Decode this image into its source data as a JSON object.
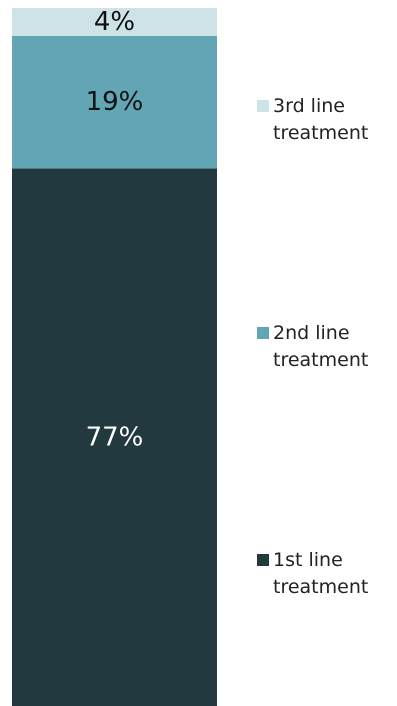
{
  "chart_data": {
    "type": "bar",
    "stacked": true,
    "orientation": "vertical",
    "categories": [
      ""
    ],
    "series": [
      {
        "name": "1st line treatment",
        "values": [
          77
        ],
        "label": "77%",
        "color": "#21393f",
        "label_color": "#ffffff"
      },
      {
        "name": "2nd line treatment",
        "values": [
          19
        ],
        "label": "19%",
        "color": "#62a6b6",
        "label_color": "#111111"
      },
      {
        "name": "3rd line treatment",
        "values": [
          4
        ],
        "label": "4%",
        "color": "#cde3e8",
        "label_color": "#111111"
      }
    ],
    "ylim": [
      0,
      100
    ],
    "legend": {
      "position": "right",
      "entries": [
        {
          "line1": "3rd line",
          "line2": "treatment",
          "color": "#cde3e8"
        },
        {
          "line1": "2nd line",
          "line2": "treatment",
          "color": "#62a6b6"
        },
        {
          "line1": "1st line",
          "line2": "treatment",
          "color": "#21393f"
        }
      ]
    },
    "grid": false,
    "title": "",
    "xlabel": "",
    "ylabel": ""
  }
}
